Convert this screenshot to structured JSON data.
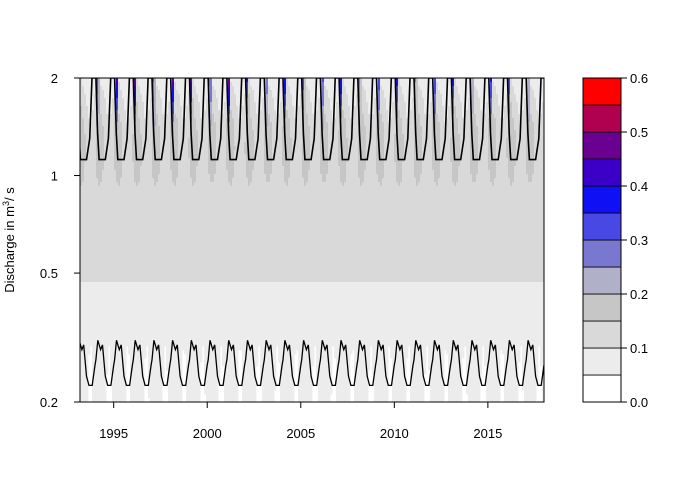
{
  "chart_data": {
    "type": "heatmap",
    "title": "",
    "xlabel": "",
    "ylabel": {
      "prefix": "Discharge in m",
      "superscript": "3",
      "suffix": "/ s"
    },
    "x_range": [
      1993.2,
      2018.0
    ],
    "x_ticks": [
      "1995",
      "2000",
      "2005",
      "2010",
      "2015"
    ],
    "y_scale": "log",
    "y_range": [
      0.2,
      2
    ],
    "y_ticks": [
      "0.2",
      "0.5",
      "1",
      "2"
    ],
    "years": [
      1993,
      1994,
      1995,
      1996,
      1997,
      1998,
      1999,
      2000,
      2001,
      2002,
      2003,
      2004,
      2005,
      2006,
      2007,
      2008,
      2009,
      2010,
      2011,
      2012,
      2013,
      2014,
      2015,
      2016,
      2017
    ],
    "upper_contour": {
      "low": 1.12,
      "high": 2.0
    },
    "lower_contour": {
      "low": 0.225,
      "high": 0.31
    },
    "colorbar": {
      "levels": [
        0.0,
        0.05,
        0.1,
        0.15,
        0.2,
        0.25,
        0.3,
        0.35,
        0.4,
        0.45,
        0.5,
        0.55,
        0.6
      ],
      "colors": [
        "#ffffff",
        "#ececec",
        "#d9d9d9",
        "#c6c6c6",
        "#b0b0c8",
        "#7878d0",
        "#4848e4",
        "#1010f4",
        "#3a00c8",
        "#6a0090",
        "#b00050",
        "#ff0000"
      ],
      "tick_labels": [
        "0.0",
        "0.1",
        "0.2",
        "0.3",
        "0.4",
        "0.5",
        "0.6"
      ]
    }
  }
}
